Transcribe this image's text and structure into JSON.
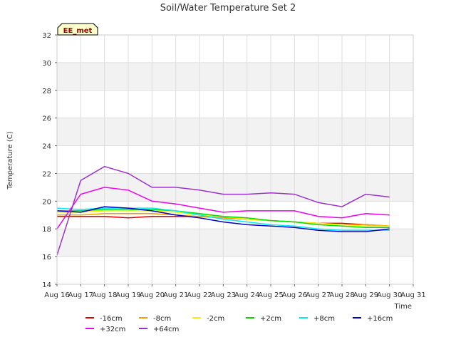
{
  "chart_data": {
    "type": "line",
    "title": "Soil/Water Temperature Set 2",
    "xlabel": "Time",
    "ylabel": "Temperature (C)",
    "station_label": "EE_met",
    "xlim": [
      16,
      31
    ],
    "ylim": [
      14,
      32
    ],
    "x_ticks": [
      {
        "v": 16,
        "label": "Aug 16"
      },
      {
        "v": 17,
        "label": "Aug 17"
      },
      {
        "v": 18,
        "label": "Aug 18"
      },
      {
        "v": 19,
        "label": "Aug 19"
      },
      {
        "v": 20,
        "label": "Aug 20"
      },
      {
        "v": 21,
        "label": "Aug 21"
      },
      {
        "v": 22,
        "label": "Aug 22"
      },
      {
        "v": 23,
        "label": "Aug 23"
      },
      {
        "v": 24,
        "label": "Aug 24"
      },
      {
        "v": 25,
        "label": "Aug 25"
      },
      {
        "v": 26,
        "label": "Aug 26"
      },
      {
        "v": 27,
        "label": "Aug 27"
      },
      {
        "v": 28,
        "label": "Aug 28"
      },
      {
        "v": 29,
        "label": "Aug 29"
      },
      {
        "v": 30,
        "label": "Aug 30"
      },
      {
        "v": 31,
        "label": "Aug 31"
      }
    ],
    "y_ticks": [
      {
        "v": 14,
        "label": "14"
      },
      {
        "v": 16,
        "label": "16"
      },
      {
        "v": 18,
        "label": "18"
      },
      {
        "v": 20,
        "label": "20"
      },
      {
        "v": 22,
        "label": "22"
      },
      {
        "v": 24,
        "label": "24"
      },
      {
        "v": 26,
        "label": "26"
      },
      {
        "v": 28,
        "label": "28"
      },
      {
        "v": 30,
        "label": "30"
      },
      {
        "v": 32,
        "label": "32"
      }
    ],
    "grid": true,
    "legend_position": "bottom",
    "x_day_centers": [
      16,
      17,
      18,
      19,
      20,
      21,
      22,
      23,
      24,
      25,
      26,
      27,
      28,
      29,
      30
    ],
    "series": [
      {
        "name": "-16cm",
        "color": "#dd0000",
        "values": [
          18.9,
          18.9,
          18.9,
          18.8,
          18.9,
          18.9,
          18.9,
          18.8,
          18.7,
          18.6,
          18.5,
          18.4,
          18.4,
          18.3,
          18.2
        ]
      },
      {
        "name": "-8cm",
        "color": "#ff9900",
        "values": [
          19.0,
          19.0,
          19.1,
          19.1,
          19.1,
          19.0,
          18.9,
          18.8,
          18.7,
          18.6,
          18.5,
          18.4,
          18.3,
          18.3,
          18.2
        ]
      },
      {
        "name": "-2cm",
        "color": "#ffee00",
        "values": [
          19.2,
          19.2,
          19.3,
          19.3,
          19.3,
          19.2,
          19.0,
          18.9,
          18.7,
          18.6,
          18.5,
          18.4,
          18.3,
          18.2,
          18.2
        ]
      },
      {
        "name": "+2cm",
        "color": "#00dd00",
        "values": [
          19.3,
          19.3,
          19.4,
          19.4,
          19.4,
          19.3,
          19.1,
          18.9,
          18.8,
          18.6,
          18.5,
          18.3,
          18.2,
          18.1,
          18.1
        ]
      },
      {
        "name": "+8cm",
        "color": "#00eeee",
        "values": [
          19.5,
          19.4,
          19.5,
          19.5,
          19.5,
          19.3,
          19.0,
          18.7,
          18.5,
          18.3,
          18.2,
          18.0,
          17.9,
          17.9,
          17.9
        ]
      },
      {
        "name": "+16cm",
        "color": "#0000cc",
        "values": [
          19.3,
          19.2,
          19.6,
          19.5,
          19.3,
          19.0,
          18.8,
          18.5,
          18.3,
          18.2,
          18.1,
          17.9,
          17.8,
          17.8,
          18.0
        ]
      },
      {
        "name": "+32cm",
        "color": "#ee00ee",
        "values": [
          18.0,
          20.5,
          21.0,
          20.8,
          20.0,
          19.8,
          19.5,
          19.2,
          19.3,
          19.3,
          19.3,
          18.9,
          18.8,
          19.1,
          19.0
        ]
      },
      {
        "name": "+64cm",
        "color": "#9933cc",
        "values": [
          16.1,
          21.5,
          22.5,
          22.0,
          21.0,
          21.0,
          20.8,
          20.5,
          20.5,
          20.6,
          20.5,
          19.9,
          19.6,
          20.5,
          20.3
        ]
      }
    ]
  }
}
